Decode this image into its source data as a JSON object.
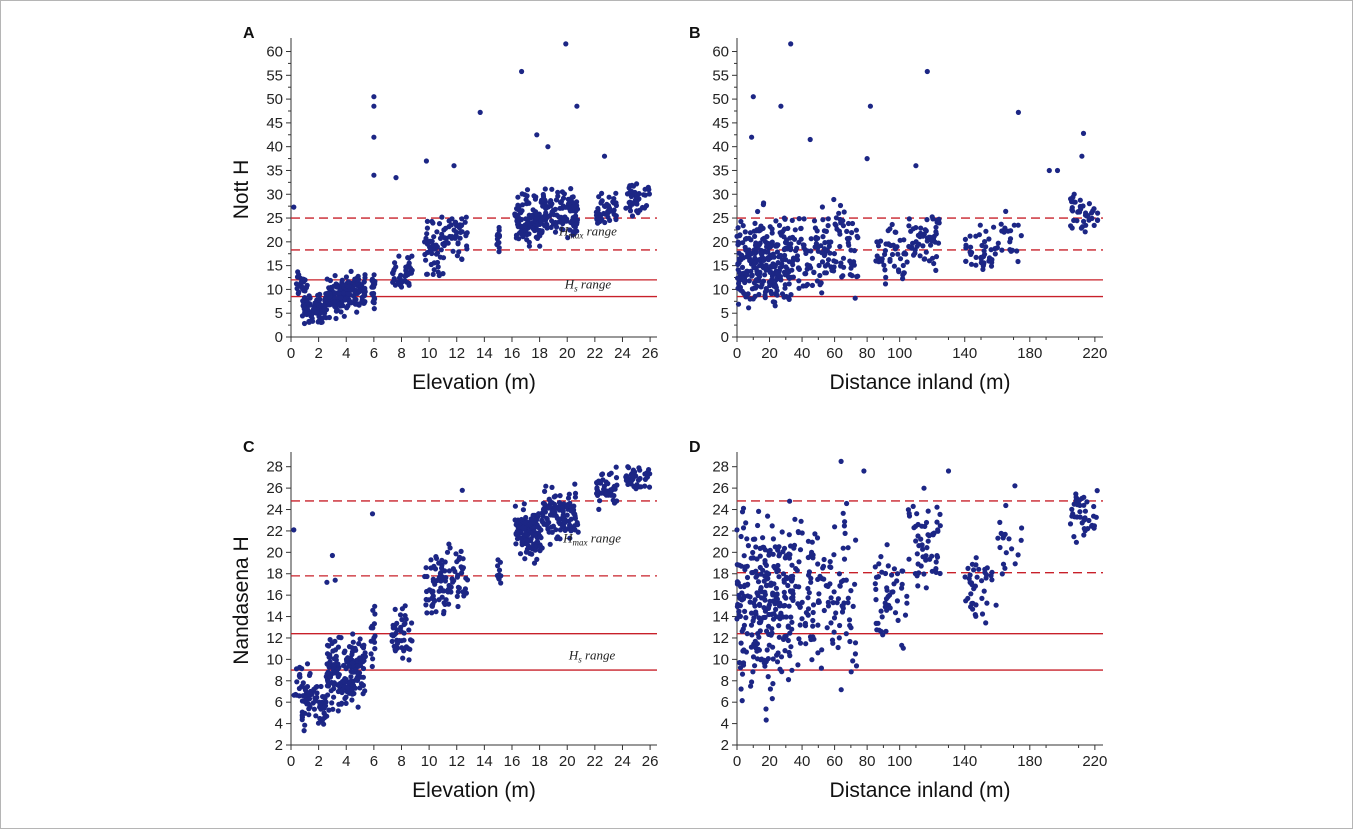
{
  "colors": {
    "points": "#1c2685",
    "hs_line": "#c8202a",
    "hmax_line": "#c8202a",
    "axis": "#333333",
    "border": "#b5b5b5"
  },
  "chart_data": [
    {
      "panel": "A",
      "type": "scatter",
      "xlabel": "Elevation (m)",
      "ylabel": "Nott H",
      "xlim": [
        0,
        26.5
      ],
      "ylim": [
        0,
        62
      ],
      "xticks": [
        "0",
        "2",
        "4",
        "6",
        "8",
        "10",
        "12",
        "14",
        "16",
        "18",
        "20",
        "22",
        "24",
        "26"
      ],
      "yticks": [
        "0",
        "5",
        "10",
        "15",
        "20",
        "25",
        "30",
        "35",
        "40",
        "45",
        "50",
        "55",
        "60"
      ],
      "reference_lines": [
        {
          "style": "dashed",
          "y": 25,
          "group": "Hmax"
        },
        {
          "style": "dashed",
          "y": 18.3,
          "group": "Hmax"
        },
        {
          "style": "solid",
          "y": 12,
          "group": "Hs"
        },
        {
          "style": "solid",
          "y": 8.5,
          "group": "Hs"
        }
      ],
      "range_labels": [
        {
          "main": "H",
          "sub": "max",
          "rest": " range",
          "x": 21.5,
          "y": 21.3
        },
        {
          "main": "H",
          "sub": "s",
          "rest": " range",
          "x": 21.5,
          "y": 10.2
        }
      ],
      "outliers": [
        [
          0.2,
          27.3
        ],
        [
          6,
          48.5
        ],
        [
          6,
          50.5
        ],
        [
          6,
          42
        ],
        [
          6,
          34
        ],
        [
          9.8,
          37
        ],
        [
          11.8,
          36
        ],
        [
          13.7,
          47.2
        ],
        [
          16.7,
          55.8
        ],
        [
          19.9,
          61.6
        ],
        [
          20.7,
          48.5
        ],
        [
          17.8,
          42.5
        ],
        [
          22.7,
          38
        ],
        [
          18.6,
          40
        ],
        [
          7.6,
          33.5
        ]
      ],
      "clusters": [
        {
          "x": [
            0.3,
            1.2
          ],
          "y": [
            7,
            15
          ],
          "n": 26
        },
        {
          "x": [
            0.8,
            2.6
          ],
          "y": [
            1.8,
            10
          ],
          "n": 80
        },
        {
          "x": [
            2.4,
            4.0
          ],
          "y": [
            3,
            14
          ],
          "n": 95
        },
        {
          "x": [
            4.0,
            5.4
          ],
          "y": [
            4.5,
            15
          ],
          "n": 90
        },
        {
          "x": [
            5.8,
            6.1
          ],
          "y": [
            5,
            15
          ],
          "n": 18
        },
        {
          "x": [
            7.3,
            8.8
          ],
          "y": [
            8,
            19
          ],
          "n": 45
        },
        {
          "x": [
            9.6,
            11.2
          ],
          "y": [
            11,
            27
          ],
          "n": 55
        },
        {
          "x": [
            11.2,
            12.8
          ],
          "y": [
            14,
            30
          ],
          "n": 40
        },
        {
          "x": [
            14.9,
            15.2
          ],
          "y": [
            15,
            24
          ],
          "n": 12
        },
        {
          "x": [
            16.2,
            18.2
          ],
          "y": [
            17,
            32
          ],
          "n": 110
        },
        {
          "x": [
            18.2,
            20.8
          ],
          "y": [
            18,
            33
          ],
          "n": 110
        },
        {
          "x": [
            22.1,
            23.6
          ],
          "y": [
            21,
            32
          ],
          "n": 45
        },
        {
          "x": [
            24.2,
            26
          ],
          "y": [
            23,
            35
          ],
          "n": 40
        }
      ]
    },
    {
      "panel": "B",
      "type": "scatter",
      "xlabel": "Distance inland (m)",
      "ylabel": "",
      "xlim": [
        0,
        225
      ],
      "ylim": [
        0,
        62
      ],
      "xticks": [
        "0",
        "20",
        "40",
        "60",
        "80",
        "100",
        "140",
        "180",
        "220"
      ],
      "xtick_values": [
        0,
        20,
        40,
        60,
        80,
        100,
        140,
        180,
        220
      ],
      "yticks": [
        "0",
        "5",
        "10",
        "15",
        "20",
        "25",
        "30",
        "35",
        "40",
        "45",
        "50",
        "55",
        "60"
      ],
      "reference_lines": [
        {
          "style": "dashed",
          "y": 25,
          "group": "Hmax"
        },
        {
          "style": "dashed",
          "y": 18.3,
          "group": "Hmax"
        },
        {
          "style": "solid",
          "y": 12,
          "group": "Hs"
        },
        {
          "style": "solid",
          "y": 8.5,
          "group": "Hs"
        }
      ],
      "range_labels": [],
      "outliers": [
        [
          10,
          50.5
        ],
        [
          9,
          42
        ],
        [
          33,
          61.6
        ],
        [
          27,
          48.5
        ],
        [
          117,
          55.8
        ],
        [
          82,
          48.5
        ],
        [
          173,
          47.2
        ],
        [
          45,
          41.5
        ],
        [
          213,
          42.8
        ],
        [
          212,
          38
        ],
        [
          192,
          35
        ],
        [
          197,
          35
        ],
        [
          80,
          37.5
        ],
        [
          110,
          36
        ]
      ],
      "clusters": [
        {
          "x": [
            0,
            10
          ],
          "y": [
            2,
            28
          ],
          "n": 70
        },
        {
          "x": [
            10,
            22
          ],
          "y": [
            2,
            30
          ],
          "n": 110
        },
        {
          "x": [
            22,
            34
          ],
          "y": [
            3,
            28
          ],
          "n": 90
        },
        {
          "x": [
            34,
            55
          ],
          "y": [
            4,
            33
          ],
          "n": 80
        },
        {
          "x": [
            55,
            75
          ],
          "y": [
            4,
            33
          ],
          "n": 60
        },
        {
          "x": [
            85,
            105
          ],
          "y": [
            8,
            26
          ],
          "n": 50
        },
        {
          "x": [
            105,
            125
          ],
          "y": [
            12,
            30
          ],
          "n": 55
        },
        {
          "x": [
            140,
            160
          ],
          "y": [
            10,
            25
          ],
          "n": 40
        },
        {
          "x": [
            160,
            175
          ],
          "y": [
            15,
            28
          ],
          "n": 20
        },
        {
          "x": [
            205,
            222
          ],
          "y": [
            18,
            34
          ],
          "n": 40
        }
      ]
    },
    {
      "panel": "C",
      "type": "scatter",
      "xlabel": "Elevation (m)",
      "ylabel": "Nandasena H",
      "xlim": [
        0,
        26.5
      ],
      "ylim": [
        2,
        29
      ],
      "xticks": [
        "0",
        "2",
        "4",
        "6",
        "8",
        "10",
        "12",
        "14",
        "16",
        "18",
        "20",
        "22",
        "24",
        "26"
      ],
      "yticks": [
        "2",
        "4",
        "6",
        "8",
        "10",
        "12",
        "14",
        "16",
        "18",
        "20",
        "22",
        "24",
        "26",
        "28"
      ],
      "reference_lines": [
        {
          "style": "dashed",
          "y": 24.8,
          "group": "Hmax"
        },
        {
          "style": "dashed",
          "y": 17.8,
          "group": "Hmax"
        },
        {
          "style": "solid",
          "y": 12.4,
          "group": "Hs"
        },
        {
          "style": "solid",
          "y": 9,
          "group": "Hs"
        }
      ],
      "range_labels": [
        {
          "main": "H",
          "sub": "max",
          "rest": " range",
          "x": 21.8,
          "y": 20.9
        },
        {
          "main": "H",
          "sub": "s",
          "rest": " range",
          "x": 21.8,
          "y": 10
        }
      ],
      "outliers": [
        [
          0.2,
          22.1
        ],
        [
          3,
          19.7
        ],
        [
          5.9,
          23.6
        ],
        [
          12.4,
          25.8
        ],
        [
          2.6,
          17.2
        ],
        [
          3.2,
          17.4
        ]
      ],
      "clusters": [
        {
          "x": [
            0.2,
            1.4
          ],
          "y": [
            5,
            11
          ],
          "n": 20
        },
        {
          "x": [
            0.8,
            2.6
          ],
          "y": [
            2.5,
            9
          ],
          "n": 70
        },
        {
          "x": [
            2.6,
            4.0
          ],
          "y": [
            4,
            13
          ],
          "n": 95
        },
        {
          "x": [
            4.0,
            5.4
          ],
          "y": [
            5,
            13.5
          ],
          "n": 90
        },
        {
          "x": [
            5.8,
            6.1
          ],
          "y": [
            8,
            17
          ],
          "n": 16
        },
        {
          "x": [
            7.3,
            8.8
          ],
          "y": [
            9,
            16
          ],
          "n": 45
        },
        {
          "x": [
            9.6,
            11.2
          ],
          "y": [
            12,
            22
          ],
          "n": 55
        },
        {
          "x": [
            11.2,
            12.8
          ],
          "y": [
            14,
            22
          ],
          "n": 40
        },
        {
          "x": [
            14.9,
            15.2
          ],
          "y": [
            16,
            20
          ],
          "n": 10
        },
        {
          "x": [
            16.2,
            18.2
          ],
          "y": [
            18,
            25
          ],
          "n": 110
        },
        {
          "x": [
            18.2,
            20.8
          ],
          "y": [
            20,
            27
          ],
          "n": 110
        },
        {
          "x": [
            22.1,
            23.6
          ],
          "y": [
            23.5,
            28.5
          ],
          "n": 45
        },
        {
          "x": [
            24.2,
            26
          ],
          "y": [
            25.5,
            28.5
          ],
          "n": 40
        }
      ]
    },
    {
      "panel": "D",
      "type": "scatter",
      "xlabel": "Distance inland (m)",
      "ylabel": "",
      "xlim": [
        0,
        225
      ],
      "ylim": [
        2,
        29
      ],
      "xticks": [
        "0",
        "20",
        "40",
        "60",
        "80",
        "100",
        "140",
        "180",
        "220"
      ],
      "xtick_values": [
        0,
        20,
        40,
        60,
        80,
        100,
        140,
        180,
        220
      ],
      "yticks": [
        "2",
        "4",
        "6",
        "8",
        "10",
        "12",
        "14",
        "16",
        "18",
        "20",
        "22",
        "24",
        "26",
        "28"
      ],
      "reference_lines": [
        {
          "style": "dashed",
          "y": 24.8,
          "group": "Hmax"
        },
        {
          "style": "dashed",
          "y": 18.1,
          "group": "Hmax"
        },
        {
          "style": "solid",
          "y": 12.4,
          "group": "Hs"
        },
        {
          "style": "solid",
          "y": 9,
          "group": "Hs"
        }
      ],
      "range_labels": [],
      "outliers": [
        [
          64,
          28.5
        ],
        [
          78,
          27.6
        ],
        [
          130,
          27.6
        ],
        [
          0,
          22.1
        ]
      ],
      "clusters": [
        {
          "x": [
            0,
            10
          ],
          "y": [
            2.5,
            27.5
          ],
          "n": 70
        },
        {
          "x": [
            10,
            22
          ],
          "y": [
            2.5,
            28.5
          ],
          "n": 110
        },
        {
          "x": [
            22,
            34
          ],
          "y": [
            3.5,
            27
          ],
          "n": 90
        },
        {
          "x": [
            34,
            55
          ],
          "y": [
            5,
            27
          ],
          "n": 80
        },
        {
          "x": [
            55,
            75
          ],
          "y": [
            5,
            28
          ],
          "n": 60
        },
        {
          "x": [
            85,
            105
          ],
          "y": [
            9,
            22
          ],
          "n": 50
        },
        {
          "x": [
            105,
            125
          ],
          "y": [
            14,
            27
          ],
          "n": 55
        },
        {
          "x": [
            140,
            160
          ],
          "y": [
            12,
            22
          ],
          "n": 40
        },
        {
          "x": [
            160,
            175
          ],
          "y": [
            15,
            27
          ],
          "n": 20
        },
        {
          "x": [
            205,
            222
          ],
          "y": [
            19,
            27.5
          ],
          "n": 40
        }
      ]
    }
  ]
}
